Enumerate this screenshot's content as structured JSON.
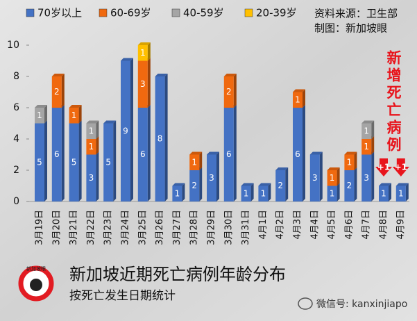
{
  "chart_data": {
    "type": "bar",
    "stacked": true,
    "title": "新加坡近期死亡病例年龄分布",
    "subtitle": "按死亡发生日期统计",
    "source": "资料来源：卫生部",
    "credit": "制图：新加坡眼",
    "logo_text": "新加坡眼",
    "watermark": "微信号: kanxinjiapo",
    "side_note": "新增死亡病例",
    "categories": [
      "3月19日",
      "3月20日",
      "3月21日",
      "3月22日",
      "3月23日",
      "3月24日",
      "3月25日",
      "3月26日",
      "3月27日",
      "3月28日",
      "3月29日",
      "3月30日",
      "3月31日",
      "4月1日",
      "4月2日",
      "4月3日",
      "4月4日",
      "4月5日",
      "4月6日",
      "4月7日",
      "4月8日",
      "4月9日"
    ],
    "series": [
      {
        "name": "70岁以上",
        "color": "#4472c4",
        "values": [
          5,
          6,
          5,
          3,
          5,
          9,
          6,
          8,
          1,
          2,
          3,
          6,
          1,
          1,
          2,
          6,
          3,
          1,
          2,
          3,
          1,
          1
        ]
      },
      {
        "name": "60-69岁",
        "color": "#f0690f",
        "values": [
          0,
          2,
          1,
          1,
          0,
          0,
          3,
          0,
          0,
          1,
          0,
          2,
          0,
          0,
          0,
          1,
          0,
          1,
          1,
          1,
          0,
          0
        ]
      },
      {
        "name": "40-59岁",
        "color": "#a5a5a5",
        "values": [
          1,
          0,
          0,
          1,
          0,
          0,
          0,
          0,
          0,
          0,
          0,
          0,
          0,
          0,
          0,
          0,
          0,
          0,
          0,
          1,
          0,
          0
        ]
      },
      {
        "name": "20-39岁",
        "color": "#ffc000",
        "values": [
          0,
          0,
          0,
          0,
          0,
          0,
          1,
          0,
          0,
          0,
          0,
          0,
          0,
          0,
          0,
          0,
          0,
          0,
          0,
          0,
          0,
          0
        ]
      }
    ],
    "annotations": [
      {
        "text": "+1",
        "category": "4月8日"
      },
      {
        "text": "+1",
        "category": "4月9日"
      }
    ],
    "ylim": [
      0,
      10
    ],
    "yticks": [
      0,
      2,
      4,
      6,
      8,
      10
    ],
    "grid": false
  }
}
